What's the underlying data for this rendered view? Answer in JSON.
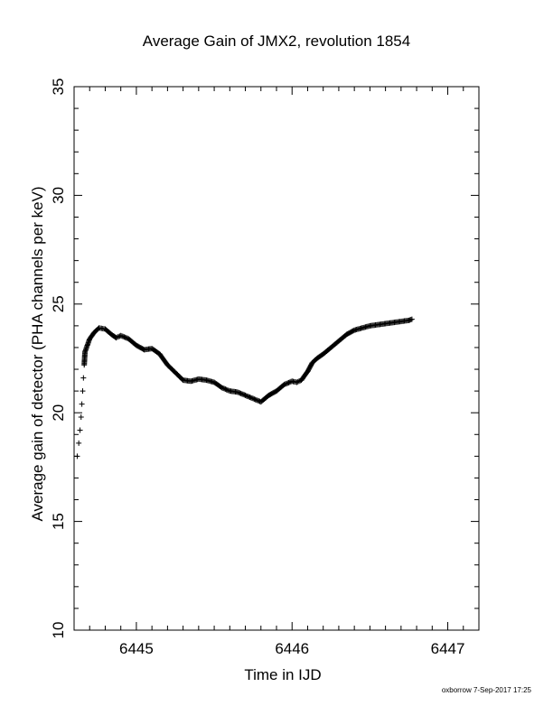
{
  "chart_data": {
    "type": "scatter",
    "title": "Average Gain of JMX2, revolution 1854",
    "xlabel": "Time in IJD",
    "ylabel": "Average gain of detector (PHA channels per keV)",
    "xlim": [
      6444.6,
      6447.2
    ],
    "ylim": [
      10,
      35
    ],
    "xticks": [
      6445,
      6446,
      6447
    ],
    "xtick_labels": [
      "6445",
      "6446",
      "6447"
    ],
    "yticks": [
      10,
      15,
      20,
      25,
      30,
      35
    ],
    "ytick_labels": [
      "10",
      "15",
      "20",
      "25",
      "30",
      "35"
    ],
    "marker": "plus",
    "grid": false,
    "series": [
      {
        "color": "#000000",
        "x": [
          6444.62,
          6444.63,
          6444.638,
          6444.645,
          6444.65,
          6444.655,
          6444.66,
          6444.665,
          6444.67,
          6444.68,
          6444.7,
          6444.73,
          6444.76,
          6444.8,
          6444.84,
          6444.87,
          6444.9,
          6444.95,
          6445.0,
          6445.05,
          6445.1,
          6445.15,
          6445.2,
          6445.25,
          6445.3,
          6445.35,
          6445.4,
          6445.45,
          6445.5,
          6445.55,
          6445.6,
          6445.65,
          6445.7,
          6445.75,
          6445.8,
          6445.85,
          6445.9,
          6445.95,
          6446.0,
          6446.03,
          6446.06,
          6446.1,
          6446.13,
          6446.16,
          6446.2,
          6446.25,
          6446.3,
          6446.35,
          6446.4,
          6446.45,
          6446.5,
          6446.55,
          6446.6,
          6446.65,
          6446.7,
          6446.75,
          6446.77
        ],
        "y": [
          18.0,
          18.6,
          19.2,
          19.8,
          20.4,
          21.0,
          21.6,
          22.2,
          22.8,
          23.0,
          23.4,
          23.7,
          23.9,
          23.85,
          23.6,
          23.45,
          23.55,
          23.4,
          23.1,
          22.9,
          22.95,
          22.7,
          22.2,
          21.85,
          21.5,
          21.45,
          21.55,
          21.5,
          21.4,
          21.15,
          21.0,
          20.95,
          20.8,
          20.65,
          20.5,
          20.8,
          21.0,
          21.3,
          21.45,
          21.4,
          21.5,
          21.9,
          22.3,
          22.5,
          22.7,
          23.0,
          23.3,
          23.6,
          23.8,
          23.9,
          24.0,
          24.05,
          24.1,
          24.15,
          24.2,
          24.25,
          24.3
        ]
      }
    ]
  },
  "footer": "oxborrow  7-Sep-2017 17:25"
}
